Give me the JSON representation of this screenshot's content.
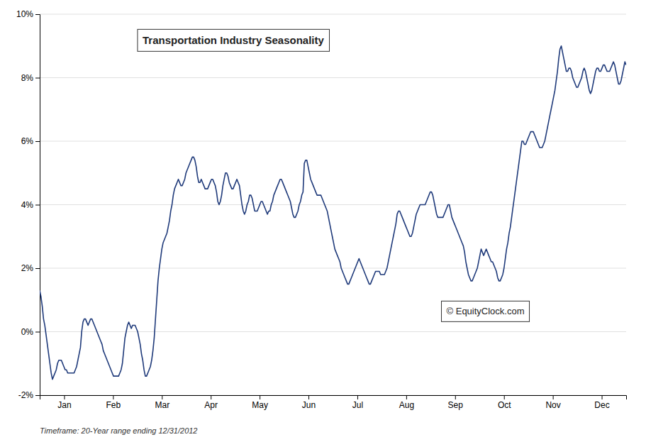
{
  "chart_data": {
    "type": "line",
    "title": "Transportation Industry Seasonality",
    "subtitle": "Timeframe: 20-Year range ending 12/31/2012",
    "annotations": [
      "© EquityClock.com"
    ],
    "color": "#1f3a7a",
    "grid": true,
    "xlim": [
      0,
      365
    ],
    "xticks": [
      {
        "value": 15.208333333333334,
        "label": "Jan"
      },
      {
        "value": 45.625,
        "label": "Feb"
      },
      {
        "value": 76.04166666666667,
        "label": "Mar"
      },
      {
        "value": 106.45833333333333,
        "label": "Apr"
      },
      {
        "value": 136.875,
        "label": "May"
      },
      {
        "value": 167.29166666666666,
        "label": "Jun"
      },
      {
        "value": 197.70833333333334,
        "label": "Jul"
      },
      {
        "value": 228.125,
        "label": "Aug"
      },
      {
        "value": 258.5416666666667,
        "label": "Sep"
      },
      {
        "value": 288.9583333333333,
        "label": "Oct"
      },
      {
        "value": 319.375,
        "label": "Nov"
      },
      {
        "value": 349.7916666666667,
        "label": "Dec"
      }
    ],
    "ylim": [
      -0.02,
      0.1
    ],
    "yticks": [
      {
        "value": -0.02,
        "label": "-2%"
      },
      {
        "value": 0.0,
        "label": "0%"
      },
      {
        "value": 0.02,
        "label": "2%"
      },
      {
        "value": 0.04,
        "label": "4%"
      },
      {
        "value": 0.06,
        "label": "6%"
      },
      {
        "value": 0.08,
        "label": "8%"
      },
      {
        "value": 0.1,
        "label": "10%"
      }
    ],
    "x": [
      0,
      0.79,
      1.58,
      2.38,
      3.17,
      3.96,
      4.75,
      5.54,
      6.33,
      7.13,
      7.92,
      8.71,
      9.5,
      10.29,
      11.08,
      11.88,
      12.67,
      13.46,
      14.25,
      15.04,
      15.84,
      16.63,
      17.42,
      18.21,
      19.0,
      19.79,
      20.59,
      21.38,
      22.17,
      22.96,
      23.75,
      24.54,
      25.34,
      26.13,
      26.92,
      27.71,
      28.5,
      29.3,
      30.09,
      30.88,
      31.67,
      32.46,
      33.25,
      34.05,
      34.84,
      35.63,
      36.42,
      37.21,
      38.0,
      38.8,
      39.59,
      40.38,
      41.17,
      41.96,
      42.75,
      43.55,
      44.34,
      45.13,
      45.92,
      46.71,
      47.51,
      48.3,
      49.09,
      49.88,
      50.67,
      51.46,
      52.26,
      53.05,
      53.84,
      54.63,
      55.42,
      56.21,
      57.01,
      57.8,
      58.59,
      59.38,
      60.17,
      60.97,
      61.76,
      62.55,
      63.34,
      64.13,
      64.92,
      65.72,
      66.51,
      67.3,
      68.09,
      68.88,
      69.67,
      70.47,
      71.26,
      72.05,
      72.84,
      73.63,
      74.43,
      75.22,
      76.01,
      76.8,
      77.59,
      78.38,
      79.18,
      79.97,
      80.76,
      81.55,
      82.34,
      83.13,
      83.93,
      84.72,
      85.51,
      86.3,
      87.09,
      87.89,
      88.68,
      89.47,
      90.26,
      91.05,
      91.84,
      92.64,
      93.43,
      94.22,
      95.01,
      95.8,
      96.59,
      97.39,
      98.18,
      98.97,
      99.76,
      100.55,
      101.34,
      102.14,
      102.93,
      103.72,
      104.51,
      105.3,
      106.1,
      106.89,
      107.68,
      108.47,
      109.26,
      110.05,
      110.85,
      111.64,
      112.43,
      113.22,
      114.01,
      114.8,
      115.6,
      116.39,
      117.18,
      117.97,
      118.76,
      119.56,
      120.35,
      121.14,
      121.93,
      122.72,
      123.51,
      124.31,
      125.1,
      125.89,
      126.68,
      127.47,
      128.26,
      129.06,
      129.85,
      130.64,
      131.43,
      132.22,
      133.02,
      133.81,
      134.6,
      135.39,
      136.18,
      136.97,
      137.77,
      138.56,
      139.35,
      140.14,
      140.93,
      141.72,
      142.52,
      143.31,
      144.1,
      144.89,
      145.68,
      146.48,
      147.27,
      148.06,
      148.85,
      149.64,
      150.43,
      151.23,
      152.02,
      152.81,
      153.6,
      154.39,
      155.18,
      155.98,
      156.77,
      157.56,
      158.35,
      159.14,
      159.93,
      160.73,
      161.52,
      162.31,
      163.1,
      163.89,
      164.69,
      165.48,
      166.27,
      167.06,
      167.85,
      168.64,
      169.44,
      170.23,
      171.02,
      171.81,
      172.6,
      173.39,
      174.19,
      174.98,
      175.77,
      176.56,
      177.35,
      178.15,
      178.94,
      179.73,
      180.52,
      181.31,
      182.1,
      182.9,
      183.69,
      184.48,
      185.27,
      186.06,
      186.85,
      187.65,
      188.44,
      189.23,
      190.02,
      190.81,
      191.61,
      192.4,
      193.19,
      193.98,
      194.77,
      195.56,
      196.36,
      197.15,
      197.94,
      198.73,
      199.52,
      200.31,
      201.11,
      201.9,
      202.69,
      203.48,
      204.27,
      205.07,
      205.86,
      206.65,
      207.44,
      208.23,
      209.02,
      209.82,
      210.61,
      211.4,
      212.19,
      212.98,
      213.77,
      214.57,
      215.36,
      216.15,
      216.94,
      217.73,
      218.52,
      219.32,
      220.11,
      220.9,
      221.69,
      222.48,
      223.28,
      224.07,
      224.86,
      225.65,
      226.44,
      227.23,
      228.03,
      228.82,
      229.61,
      230.4,
      231.19,
      231.98,
      232.78,
      233.57,
      234.36,
      235.15,
      235.94,
      236.74,
      237.53,
      238.32,
      239.11,
      239.9,
      240.69,
      241.49,
      242.28,
      243.07,
      243.86,
      244.65,
      245.44,
      246.24,
      247.03,
      247.82,
      248.61,
      249.4,
      250.2,
      250.99,
      251.78,
      252.57,
      253.36,
      254.15,
      254.95,
      255.74,
      256.53,
      257.32,
      258.11,
      258.9,
      259.7,
      260.49,
      261.28,
      262.07,
      262.86,
      263.66,
      264.45,
      265.24,
      266.03,
      266.82,
      267.61,
      268.41,
      269.2,
      269.99,
      270.78,
      271.57,
      272.36,
      273.16,
      273.95,
      274.74,
      275.53,
      276.32,
      277.11,
      277.91,
      278.7,
      279.49,
      280.28,
      281.07,
      281.87,
      282.66,
      283.45,
      284.24,
      285.03,
      285.82,
      286.62,
      287.41,
      288.2,
      288.99,
      289.78,
      290.57,
      291.37,
      292.16,
      292.95,
      293.74,
      294.53,
      295.33,
      296.12,
      296.91,
      297.7,
      298.49,
      299.28,
      300.08,
      300.87,
      301.66,
      302.45,
      303.24,
      304.03,
      304.83,
      305.62,
      306.41,
      307.2,
      307.99,
      308.79,
      309.58,
      310.37,
      311.16,
      311.95,
      312.74,
      313.54,
      314.33,
      315.12,
      315.91,
      316.7,
      317.49,
      318.29,
      319.08,
      319.87,
      320.66,
      321.45,
      322.25,
      323.04,
      323.83,
      324.62,
      325.41,
      326.2,
      327.0,
      327.79,
      328.58,
      329.37,
      330.16,
      330.95,
      331.75,
      332.54,
      333.33,
      334.12,
      334.91,
      335.7,
      336.5,
      337.29,
      338.08,
      338.87,
      339.66,
      340.46,
      341.25,
      342.04,
      342.83,
      343.62,
      344.41,
      345.21,
      346.0,
      346.79,
      347.58,
      348.37,
      349.16,
      349.96,
      350.75,
      351.54,
      352.33,
      353.12,
      353.92,
      354.71,
      355.5,
      356.29,
      357.08,
      357.87,
      358.67,
      359.46,
      360.25,
      361.04,
      361.83,
      362.62,
      363.42,
      364.21,
      365
    ],
    "values": [
      0.013,
      0.011,
      0.008,
      0.004,
      0.002,
      -0.001,
      -0.004,
      -0.007,
      -0.01,
      -0.013,
      -0.015,
      -0.014,
      -0.013,
      -0.012,
      -0.01,
      -0.009,
      -0.009,
      -0.009,
      -0.01,
      -0.011,
      -0.012,
      -0.012,
      -0.013,
      -0.013,
      -0.013,
      -0.013,
      -0.013,
      -0.013,
      -0.012,
      -0.011,
      -0.009,
      -0.007,
      -0.005,
      0.0,
      0.003,
      0.004,
      0.004,
      0.003,
      0.002,
      0.003,
      0.004,
      0.004,
      0.003,
      0.002,
      0.001,
      0.0,
      -0.001,
      -0.002,
      -0.003,
      -0.004,
      -0.006,
      -0.007,
      -0.008,
      -0.009,
      -0.01,
      -0.011,
      -0.012,
      -0.013,
      -0.014,
      -0.014,
      -0.014,
      -0.014,
      -0.014,
      -0.013,
      -0.012,
      -0.01,
      -0.006,
      -0.002,
      0.0,
      0.002,
      0.003,
      0.002,
      0.001,
      0.002,
      0.002,
      0.002,
      0.001,
      0.0,
      -0.002,
      -0.004,
      -0.007,
      -0.009,
      -0.012,
      -0.014,
      -0.014,
      -0.013,
      -0.012,
      -0.011,
      -0.009,
      -0.006,
      -0.002,
      0.004,
      0.01,
      0.016,
      0.02,
      0.023,
      0.026,
      0.028,
      0.029,
      0.03,
      0.031,
      0.033,
      0.035,
      0.038,
      0.04,
      0.043,
      0.045,
      0.046,
      0.047,
      0.048,
      0.047,
      0.046,
      0.046,
      0.047,
      0.048,
      0.05,
      0.051,
      0.052,
      0.053,
      0.054,
      0.055,
      0.055,
      0.054,
      0.052,
      0.049,
      0.047,
      0.047,
      0.048,
      0.047,
      0.046,
      0.045,
      0.045,
      0.045,
      0.046,
      0.047,
      0.048,
      0.048,
      0.047,
      0.046,
      0.044,
      0.041,
      0.04,
      0.041,
      0.043,
      0.046,
      0.048,
      0.05,
      0.05,
      0.049,
      0.047,
      0.046,
      0.045,
      0.045,
      0.046,
      0.047,
      0.048,
      0.047,
      0.046,
      0.043,
      0.04,
      0.038,
      0.037,
      0.038,
      0.04,
      0.041,
      0.043,
      0.043,
      0.042,
      0.04,
      0.038,
      0.038,
      0.038,
      0.039,
      0.04,
      0.041,
      0.041,
      0.04,
      0.039,
      0.038,
      0.037,
      0.038,
      0.038,
      0.04,
      0.041,
      0.043,
      0.044,
      0.045,
      0.046,
      0.047,
      0.048,
      0.048,
      0.047,
      0.046,
      0.045,
      0.044,
      0.043,
      0.042,
      0.041,
      0.039,
      0.037,
      0.036,
      0.036,
      0.037,
      0.038,
      0.04,
      0.041,
      0.043,
      0.044,
      0.053,
      0.054,
      0.054,
      0.052,
      0.05,
      0.048,
      0.047,
      0.046,
      0.045,
      0.044,
      0.043,
      0.043,
      0.043,
      0.043,
      0.042,
      0.041,
      0.04,
      0.039,
      0.038,
      0.036,
      0.034,
      0.032,
      0.03,
      0.028,
      0.026,
      0.025,
      0.024,
      0.023,
      0.022,
      0.02,
      0.019,
      0.018,
      0.017,
      0.016,
      0.015,
      0.015,
      0.016,
      0.017,
      0.018,
      0.019,
      0.02,
      0.021,
      0.022,
      0.023,
      0.022,
      0.021,
      0.02,
      0.019,
      0.018,
      0.017,
      0.016,
      0.015,
      0.015,
      0.016,
      0.017,
      0.018,
      0.019,
      0.019,
      0.019,
      0.019,
      0.018,
      0.018,
      0.018,
      0.018,
      0.019,
      0.02,
      0.022,
      0.024,
      0.026,
      0.028,
      0.03,
      0.032,
      0.034,
      0.037,
      0.038,
      0.038,
      0.037,
      0.036,
      0.035,
      0.034,
      0.033,
      0.032,
      0.031,
      0.03,
      0.03,
      0.031,
      0.033,
      0.035,
      0.037,
      0.038,
      0.039,
      0.04,
      0.04,
      0.04,
      0.04,
      0.04,
      0.041,
      0.042,
      0.043,
      0.044,
      0.044,
      0.043,
      0.041,
      0.039,
      0.037,
      0.036,
      0.036,
      0.036,
      0.036,
      0.036,
      0.037,
      0.038,
      0.039,
      0.04,
      0.04,
      0.038,
      0.036,
      0.035,
      0.034,
      0.033,
      0.032,
      0.031,
      0.03,
      0.029,
      0.028,
      0.027,
      0.025,
      0.022,
      0.02,
      0.018,
      0.017,
      0.016,
      0.016,
      0.017,
      0.018,
      0.019,
      0.02,
      0.022,
      0.024,
      0.026,
      0.025,
      0.024,
      0.025,
      0.026,
      0.025,
      0.024,
      0.023,
      0.022,
      0.022,
      0.021,
      0.02,
      0.019,
      0.017,
      0.016,
      0.016,
      0.017,
      0.018,
      0.02,
      0.023,
      0.026,
      0.028,
      0.031,
      0.033,
      0.036,
      0.039,
      0.042,
      0.045,
      0.048,
      0.051,
      0.054,
      0.057,
      0.06,
      0.06,
      0.059,
      0.059,
      0.06,
      0.061,
      0.062,
      0.063,
      0.063,
      0.063,
      0.062,
      0.061,
      0.06,
      0.059,
      0.058,
      0.058,
      0.058,
      0.059,
      0.06,
      0.062,
      0.064,
      0.066,
      0.068,
      0.07,
      0.072,
      0.074,
      0.076,
      0.079,
      0.082,
      0.086,
      0.089,
      0.09,
      0.088,
      0.086,
      0.084,
      0.082,
      0.082,
      0.083,
      0.083,
      0.082,
      0.08,
      0.079,
      0.078,
      0.077,
      0.077,
      0.078,
      0.079,
      0.08,
      0.082,
      0.083,
      0.082,
      0.08,
      0.078,
      0.076,
      0.075,
      0.076,
      0.078,
      0.08,
      0.082,
      0.083,
      0.083,
      0.082,
      0.082,
      0.083,
      0.084,
      0.084,
      0.083,
      0.082,
      0.082,
      0.082,
      0.083,
      0.084,
      0.085,
      0.084,
      0.082,
      0.08,
      0.078,
      0.078,
      0.079,
      0.081,
      0.083,
      0.085,
      0.084
    ]
  }
}
